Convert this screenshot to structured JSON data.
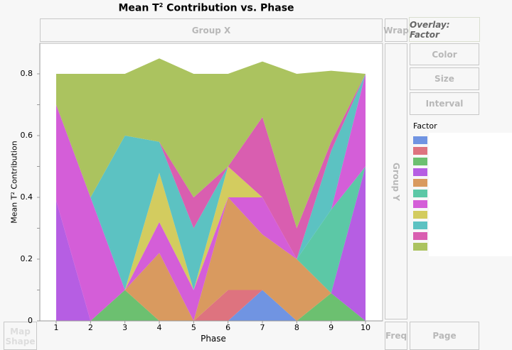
{
  "chart_data": {
    "type": "area",
    "stacked": true,
    "title": "Mean T² Contribution vs. Phase",
    "title_main": "Mean T",
    "title_sup": "2",
    "title_rest": " Contribution vs. Phase",
    "xlabel": "Phase",
    "ylabel": "Mean T² Contribution",
    "x": [
      1,
      2,
      3,
      4,
      5,
      6,
      7,
      8,
      9,
      10
    ],
    "x_ticks": [
      "1",
      "2",
      "3",
      "4",
      "5",
      "6",
      "7",
      "8",
      "9",
      "10"
    ],
    "y_ticks": [
      "0",
      "0.2",
      "0.4",
      "0.6",
      "0.8"
    ],
    "ylim": [
      0,
      0.9
    ],
    "legend_title": "Factor",
    "legend_placement": "right",
    "series": [
      {
        "name": "",
        "color": "#7094e2",
        "values": [
          0,
          0,
          0,
          0,
          0,
          0,
          0.1,
          0,
          0,
          0
        ]
      },
      {
        "name": "",
        "color": "#de737f",
        "values": [
          0,
          0,
          0,
          0,
          0,
          0.1,
          0,
          0,
          0,
          0
        ]
      },
      {
        "name": "",
        "color": "#6cc070",
        "values": [
          0,
          0,
          0.1,
          0,
          0,
          0,
          0,
          0,
          0.09,
          0
        ]
      },
      {
        "name": "",
        "color": "#b65ee3",
        "values": [
          0.39,
          0,
          0,
          0,
          0,
          0,
          0,
          0,
          0,
          0.5
        ]
      },
      {
        "name": "",
        "color": "#d99a5f",
        "values": [
          0,
          0,
          0,
          0.22,
          0,
          0.3,
          0.18,
          0.2,
          0,
          0
        ]
      },
      {
        "name": "",
        "color": "#5cc8a6",
        "values": [
          0,
          0,
          0,
          0,
          0,
          0,
          0,
          0,
          0.27,
          0
        ]
      },
      {
        "name": "",
        "color": "#d45ed8",
        "values": [
          0.31,
          0.4,
          0,
          0.1,
          0.1,
          0,
          0.12,
          0,
          0,
          0.3
        ]
      },
      {
        "name": "",
        "color": "#d3cc5f",
        "values": [
          0,
          0,
          0,
          0.16,
          0,
          0.1,
          0,
          0,
          0,
          0
        ]
      },
      {
        "name": "",
        "color": "#5cc2c2",
        "values": [
          0,
          0,
          0.5,
          0.1,
          0.2,
          0,
          0,
          0,
          0.19,
          0
        ]
      },
      {
        "name": "",
        "color": "#d95eb0",
        "values": [
          0,
          0,
          0,
          0,
          0.1,
          0,
          0.26,
          0.1,
          0.03,
          0
        ]
      },
      {
        "name": "",
        "color": "#abc35f",
        "values": [
          0.1,
          0.4,
          0.2,
          0.27,
          0.4,
          0.3,
          0.18,
          0.5,
          0.23,
          0
        ]
      }
    ]
  },
  "zones": {
    "group_x": "Group X",
    "wrap": "Wrap",
    "overlay": "Overlay: Factor",
    "color": "Color",
    "size": "Size",
    "interval": "Interval",
    "group_y": "Group Y",
    "map_shape": "Map Shape",
    "freq": "Freq",
    "page": "Page"
  }
}
